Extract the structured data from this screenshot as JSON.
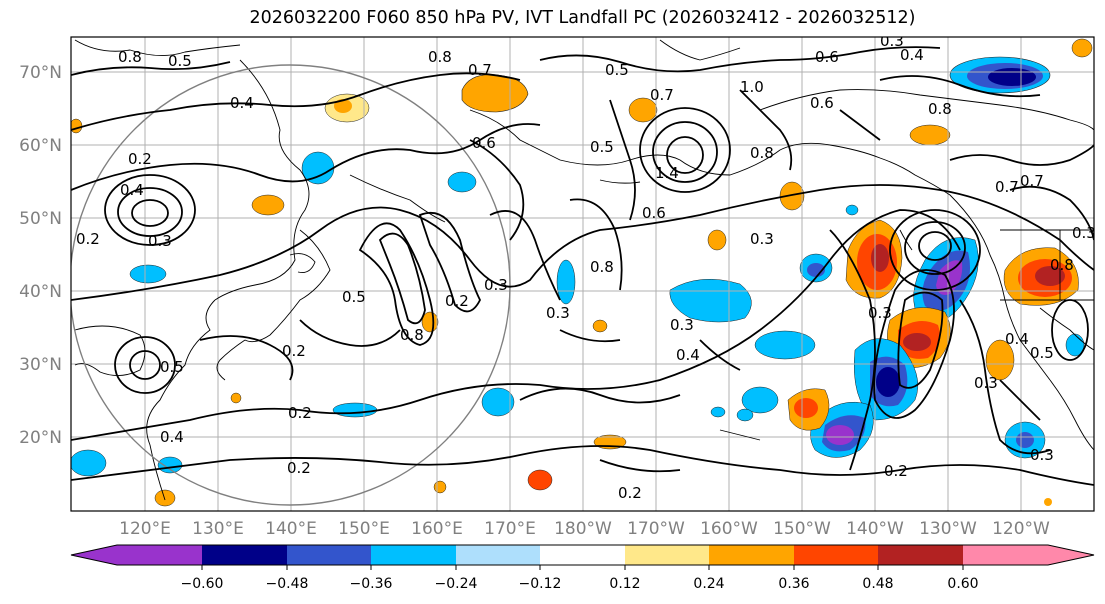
{
  "title": "2026032200 F060 850 hPa PV, IVT Landfall PC (2026032412 - 2026032512)",
  "map": {
    "lat_labels": [
      "70°N",
      "60°N",
      "50°N",
      "40°N",
      "30°N",
      "20°N"
    ],
    "lon_labels": [
      "120°E",
      "130°E",
      "140°E",
      "150°E",
      "160°E",
      "170°E",
      "180°W",
      "170°W",
      "160°W",
      "150°W",
      "140°W",
      "130°W",
      "120°W"
    ],
    "contour_labels": [
      "0.8",
      "0.8",
      "0.7",
      "0.5",
      "0.6",
      "0.5",
      "0.3",
      "0.4",
      "0.7",
      "1.0",
      "0.6",
      "0.8",
      "0.4",
      "0.2",
      "0.4",
      "0.3",
      "0.2",
      "0.6",
      "0.5",
      "0.8",
      "1.4",
      "0.6",
      "0.7",
      "0.3",
      "0.8",
      "0.5",
      "0.2",
      "0.3",
      "0.3",
      "0.8",
      "0.2",
      "0.5",
      "0.3",
      "0.2",
      "0.4",
      "0.2",
      "0.2",
      "0.4",
      "0.3",
      "0.2",
      "0.3",
      "0.4",
      "0.5",
      "0.3",
      "0.7",
      "0.8",
      "0.3"
    ]
  },
  "colorbar": {
    "colors": [
      "#9933cc",
      "#000088",
      "#3355cc",
      "#00bfff",
      "#aedffc",
      "#ffffff",
      "#ffe88a",
      "#ffa500",
      "#ff4500",
      "#b22222",
      "#ff88aa"
    ],
    "tick_labels": [
      "−0.60",
      "−0.48",
      "−0.36",
      "−0.24",
      "−0.12",
      "0.12",
      "0.24",
      "0.36",
      "0.48",
      "0.60"
    ]
  }
}
